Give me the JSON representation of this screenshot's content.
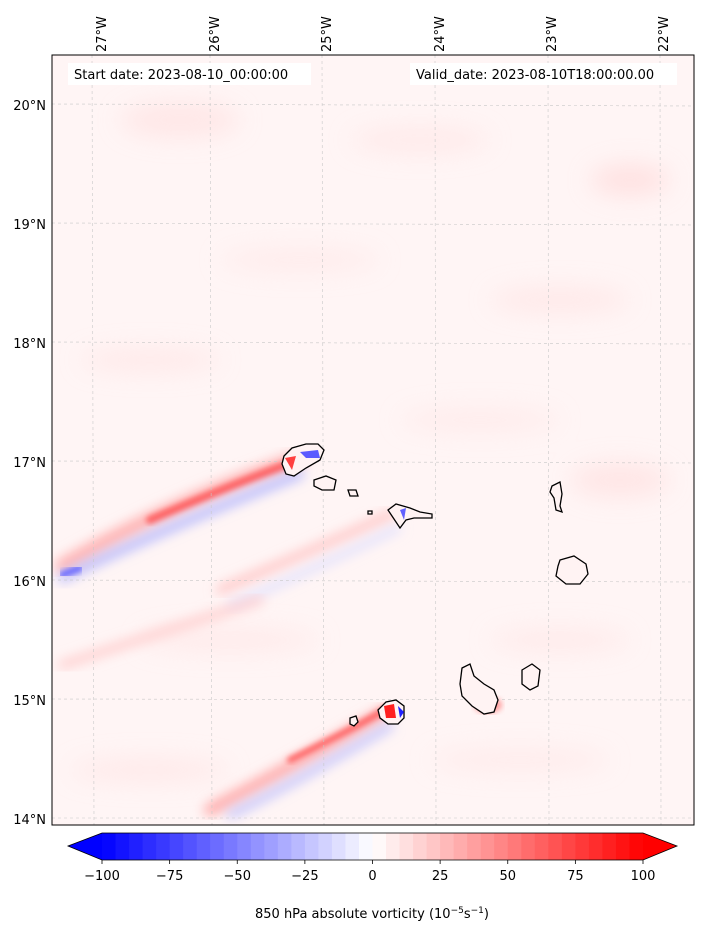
{
  "start_label": "Start date: 2023-08-10_00:00:00",
  "valid_label": "Valid_date: 2023-08-10T18:00:00.00",
  "lon_labels": [
    "27°W",
    "26°W",
    "25°W",
    "24°W",
    "23°W",
    "22°W"
  ],
  "lat_labels": [
    "20°N",
    "19°N",
    "18°N",
    "17°N",
    "16°N",
    "15°N",
    "14°N"
  ],
  "colorbar": {
    "ticks": [
      -100,
      -75,
      -50,
      -25,
      0,
      25,
      50,
      75,
      100
    ],
    "tick_labels": [
      "−100",
      "−75",
      "−50",
      "−25",
      "0",
      "25",
      "50",
      "75",
      "100"
    ],
    "label_prefix": "850 hPa absolute vorticity (10",
    "label_exp1": "−5",
    "label_mid": "s",
    "label_exp2": "−1",
    "label_suffix": ")",
    "min_color": "#0000ff",
    "mid_color": "#ffffff",
    "max_color": "#ff0000"
  },
  "colors": {
    "background_field": "#fff5f5",
    "coastline": "#000000",
    "gridline": "#cccccc"
  }
}
